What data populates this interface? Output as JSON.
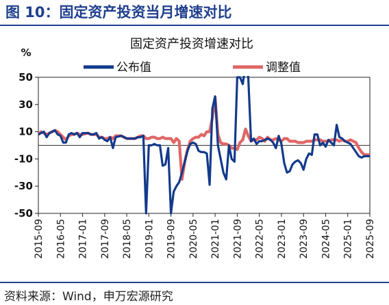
{
  "figure_title": "图 10：固定资产投资当月增速对比",
  "source": "资料来源：Wind，申万宏源研究",
  "colors": {
    "accent": "#1f3f8e",
    "series1": "#123a8c",
    "series2": "#e06666"
  },
  "chart_data": {
    "type": "line",
    "title": "固定资产投资增速对比",
    "ylabel": "%",
    "ylim": [
      -50,
      50
    ],
    "yticks": [
      50,
      30,
      10,
      -10,
      -30,
      -50
    ],
    "x_start": "2015-09",
    "x_end": "2025-09",
    "xticks": [
      "2015-09",
      "2016-05",
      "2017-01",
      "2017-09",
      "2018-05",
      "2019-01",
      "2019-09",
      "2020-05",
      "2021-01",
      "2021-09",
      "2022-05",
      "2023-01",
      "2023-09",
      "2024-05",
      "2025-01",
      "2025-09"
    ],
    "legend": {
      "placement": "top",
      "entries": [
        "公布值",
        "调整值"
      ]
    },
    "series": [
      {
        "name": "公布值",
        "points": [
          [
            "2015-09",
            8
          ],
          [
            "2015-10",
            9
          ],
          [
            "2015-11",
            10
          ],
          [
            "2015-12",
            6
          ],
          [
            "2016-01",
            9
          ],
          [
            "2016-03",
            11
          ],
          [
            "2016-04",
            8
          ],
          [
            "2016-05",
            7
          ],
          [
            "2016-06",
            2
          ],
          [
            "2016-07",
            2
          ],
          [
            "2016-08",
            8
          ],
          [
            "2016-09",
            9
          ],
          [
            "2016-10",
            8
          ],
          [
            "2016-11",
            9
          ],
          [
            "2016-12",
            6
          ],
          [
            "2017-01",
            9
          ],
          [
            "2017-03",
            9
          ],
          [
            "2017-04",
            8
          ],
          [
            "2017-05",
            8
          ],
          [
            "2017-06",
            9
          ],
          [
            "2017-07",
            5
          ],
          [
            "2017-08",
            6
          ],
          [
            "2017-09",
            4
          ],
          [
            "2017-10",
            3
          ],
          [
            "2017-11",
            6
          ],
          [
            "2017-12",
            -2
          ],
          [
            "2018-01",
            6
          ],
          [
            "2018-03",
            7
          ],
          [
            "2018-04",
            6
          ],
          [
            "2018-05",
            5
          ],
          [
            "2018-06",
            5
          ],
          [
            "2018-07",
            5
          ],
          [
            "2018-08",
            5
          ],
          [
            "2018-09",
            6
          ],
          [
            "2018-10",
            6
          ],
          [
            "2018-11",
            7
          ],
          [
            "2018-12",
            -50
          ],
          [
            "2019-01",
            0
          ],
          [
            "2019-02",
            0
          ],
          [
            "2019-03",
            1
          ],
          [
            "2019-04",
            0
          ],
          [
            "2019-05",
            0
          ],
          [
            "2019-06",
            -15
          ],
          [
            "2019-07",
            -14
          ],
          [
            "2019-08",
            -2
          ],
          [
            "2019-09",
            -50
          ],
          [
            "2019-10",
            -34
          ],
          [
            "2019-11",
            -30
          ],
          [
            "2019-12",
            -27
          ],
          [
            "2020-01",
            -20
          ],
          [
            "2020-02",
            -12
          ],
          [
            "2020-03",
            -4
          ],
          [
            "2020-04",
            1
          ],
          [
            "2020-05",
            2
          ],
          [
            "2020-06",
            1
          ],
          [
            "2020-07",
            -4
          ],
          [
            "2020-08",
            -5
          ],
          [
            "2020-09",
            -5
          ],
          [
            "2020-10",
            -6
          ],
          [
            "2020-11",
            -29
          ],
          [
            "2020-12",
            27
          ],
          [
            "2021-01",
            36
          ],
          [
            "2021-02",
            0
          ],
          [
            "2021-03",
            -10
          ],
          [
            "2021-04",
            -20
          ],
          [
            "2021-05",
            -25
          ],
          [
            "2021-06",
            0
          ],
          [
            "2021-07",
            -10
          ],
          [
            "2021-08",
            -12
          ],
          [
            "2021-09",
            50
          ],
          [
            "2021-10",
            50
          ],
          [
            "2021-11",
            45
          ],
          [
            "2021-12",
            60
          ],
          [
            "2022-01",
            50
          ],
          [
            "2022-02",
            3
          ],
          [
            "2022-03",
            5
          ],
          [
            "2022-04",
            1
          ],
          [
            "2022-05",
            3
          ],
          [
            "2022-06",
            3
          ],
          [
            "2022-07",
            4
          ],
          [
            "2022-08",
            5
          ],
          [
            "2022-09",
            4
          ],
          [
            "2022-10",
            2
          ],
          [
            "2022-11",
            -2
          ],
          [
            "2022-12",
            7
          ],
          [
            "2023-01",
            1
          ],
          [
            "2023-02",
            -13
          ],
          [
            "2023-03",
            -20
          ],
          [
            "2023-04",
            -19
          ],
          [
            "2023-05",
            -14
          ],
          [
            "2023-06",
            -12
          ],
          [
            "2023-07",
            -11
          ],
          [
            "2023-08",
            -13
          ],
          [
            "2023-09",
            -18
          ],
          [
            "2023-10",
            -10
          ],
          [
            "2023-11",
            -6
          ],
          [
            "2023-12",
            -7
          ],
          [
            "2024-01",
            8
          ],
          [
            "2024-02",
            8
          ],
          [
            "2024-03",
            0
          ],
          [
            "2024-04",
            2
          ],
          [
            "2024-05",
            -1
          ],
          [
            "2024-06",
            4
          ],
          [
            "2024-07",
            2
          ],
          [
            "2024-08",
            0
          ],
          [
            "2024-09",
            15
          ],
          [
            "2024-10",
            6
          ],
          [
            "2024-11",
            5
          ],
          [
            "2024-12",
            3
          ],
          [
            "2025-01",
            2
          ],
          [
            "2025-02",
            1
          ],
          [
            "2025-03",
            -2
          ],
          [
            "2025-04",
            -5
          ],
          [
            "2025-05",
            -8
          ],
          [
            "2025-06",
            -9
          ],
          [
            "2025-07",
            -8
          ],
          [
            "2025-09",
            -8
          ]
        ]
      },
      {
        "name": "调整值",
        "points": [
          [
            "2015-09",
            8
          ],
          [
            "2015-10",
            10
          ],
          [
            "2015-11",
            9
          ],
          [
            "2015-12",
            8
          ],
          [
            "2016-01",
            9
          ],
          [
            "2016-03",
            11
          ],
          [
            "2016-04",
            10
          ],
          [
            "2016-05",
            8
          ],
          [
            "2016-06",
            6
          ],
          [
            "2016-07",
            4
          ],
          [
            "2016-08",
            7
          ],
          [
            "2016-09",
            8
          ],
          [
            "2016-10",
            8
          ],
          [
            "2016-11",
            9
          ],
          [
            "2016-12",
            8
          ],
          [
            "2017-01",
            8
          ],
          [
            "2017-03",
            9
          ],
          [
            "2017-04",
            8
          ],
          [
            "2017-05",
            8
          ],
          [
            "2017-06",
            8
          ],
          [
            "2017-07",
            6
          ],
          [
            "2017-08",
            6
          ],
          [
            "2017-09",
            5
          ],
          [
            "2017-10",
            5
          ],
          [
            "2017-11",
            6
          ],
          [
            "2017-12",
            5
          ],
          [
            "2018-01",
            7
          ],
          [
            "2018-03",
            7
          ],
          [
            "2018-04",
            6
          ],
          [
            "2018-05",
            5
          ],
          [
            "2018-06",
            5
          ],
          [
            "2018-07",
            5
          ],
          [
            "2018-08",
            5
          ],
          [
            "2018-09",
            6
          ],
          [
            "2018-10",
            7
          ],
          [
            "2018-11",
            7
          ],
          [
            "2018-12",
            5
          ],
          [
            "2019-01",
            5
          ],
          [
            "2019-02",
            6
          ],
          [
            "2019-03",
            6
          ],
          [
            "2019-04",
            5
          ],
          [
            "2019-05",
            5
          ],
          [
            "2019-06",
            6
          ],
          [
            "2019-07",
            5
          ],
          [
            "2019-08",
            5
          ],
          [
            "2019-09",
            5
          ],
          [
            "2019-10",
            2
          ],
          [
            "2019-11",
            5
          ],
          [
            "2019-12",
            3
          ],
          [
            "2020-01",
            -25
          ],
          [
            "2020-02",
            -12
          ],
          [
            "2020-03",
            -3
          ],
          [
            "2020-04",
            3
          ],
          [
            "2020-05",
            5
          ],
          [
            "2020-06",
            6
          ],
          [
            "2020-07",
            6
          ],
          [
            "2020-08",
            8
          ],
          [
            "2020-09",
            7
          ],
          [
            "2020-10",
            10
          ],
          [
            "2020-11",
            10
          ],
          [
            "2020-12",
            20
          ],
          [
            "2021-01",
            35
          ],
          [
            "2021-02",
            8
          ],
          [
            "2021-03",
            2
          ],
          [
            "2021-04",
            1
          ],
          [
            "2021-05",
            1
          ],
          [
            "2021-06",
            0
          ],
          [
            "2021-07",
            -2
          ],
          [
            "2021-08",
            -2
          ],
          [
            "2021-09",
            -3
          ],
          [
            "2021-10",
            2
          ],
          [
            "2021-11",
            4
          ],
          [
            "2021-12",
            12
          ],
          [
            "2022-01",
            7
          ],
          [
            "2022-02",
            3
          ],
          [
            "2022-03",
            4
          ],
          [
            "2022-04",
            4
          ],
          [
            "2022-05",
            6
          ],
          [
            "2022-06",
            5
          ],
          [
            "2022-07",
            3
          ],
          [
            "2022-08",
            6
          ],
          [
            "2022-09",
            4
          ],
          [
            "2022-10",
            4
          ],
          [
            "2022-11",
            5
          ],
          [
            "2022-12",
            4
          ],
          [
            "2023-01",
            3
          ],
          [
            "2023-02",
            5
          ],
          [
            "2023-03",
            5
          ],
          [
            "2023-04",
            3
          ],
          [
            "2023-05",
            3
          ],
          [
            "2023-06",
            3
          ],
          [
            "2023-07",
            2
          ],
          [
            "2023-08",
            2
          ],
          [
            "2023-09",
            2
          ],
          [
            "2023-10",
            3
          ],
          [
            "2023-11",
            3
          ],
          [
            "2023-12",
            3
          ],
          [
            "2024-01",
            4
          ],
          [
            "2024-02",
            4
          ],
          [
            "2024-03",
            4
          ],
          [
            "2024-04",
            3
          ],
          [
            "2024-05",
            3
          ],
          [
            "2024-06",
            3
          ],
          [
            "2024-07",
            4
          ],
          [
            "2024-08",
            4
          ],
          [
            "2024-09",
            4
          ],
          [
            "2024-10",
            3
          ],
          [
            "2024-11",
            4
          ],
          [
            "2024-12",
            3
          ],
          [
            "2025-01",
            3
          ],
          [
            "2025-02",
            4
          ],
          [
            "2025-03",
            3
          ],
          [
            "2025-04",
            2
          ],
          [
            "2025-05",
            -2
          ],
          [
            "2025-06",
            -5
          ],
          [
            "2025-07",
            -7
          ],
          [
            "2025-09",
            -7
          ]
        ]
      }
    ]
  }
}
